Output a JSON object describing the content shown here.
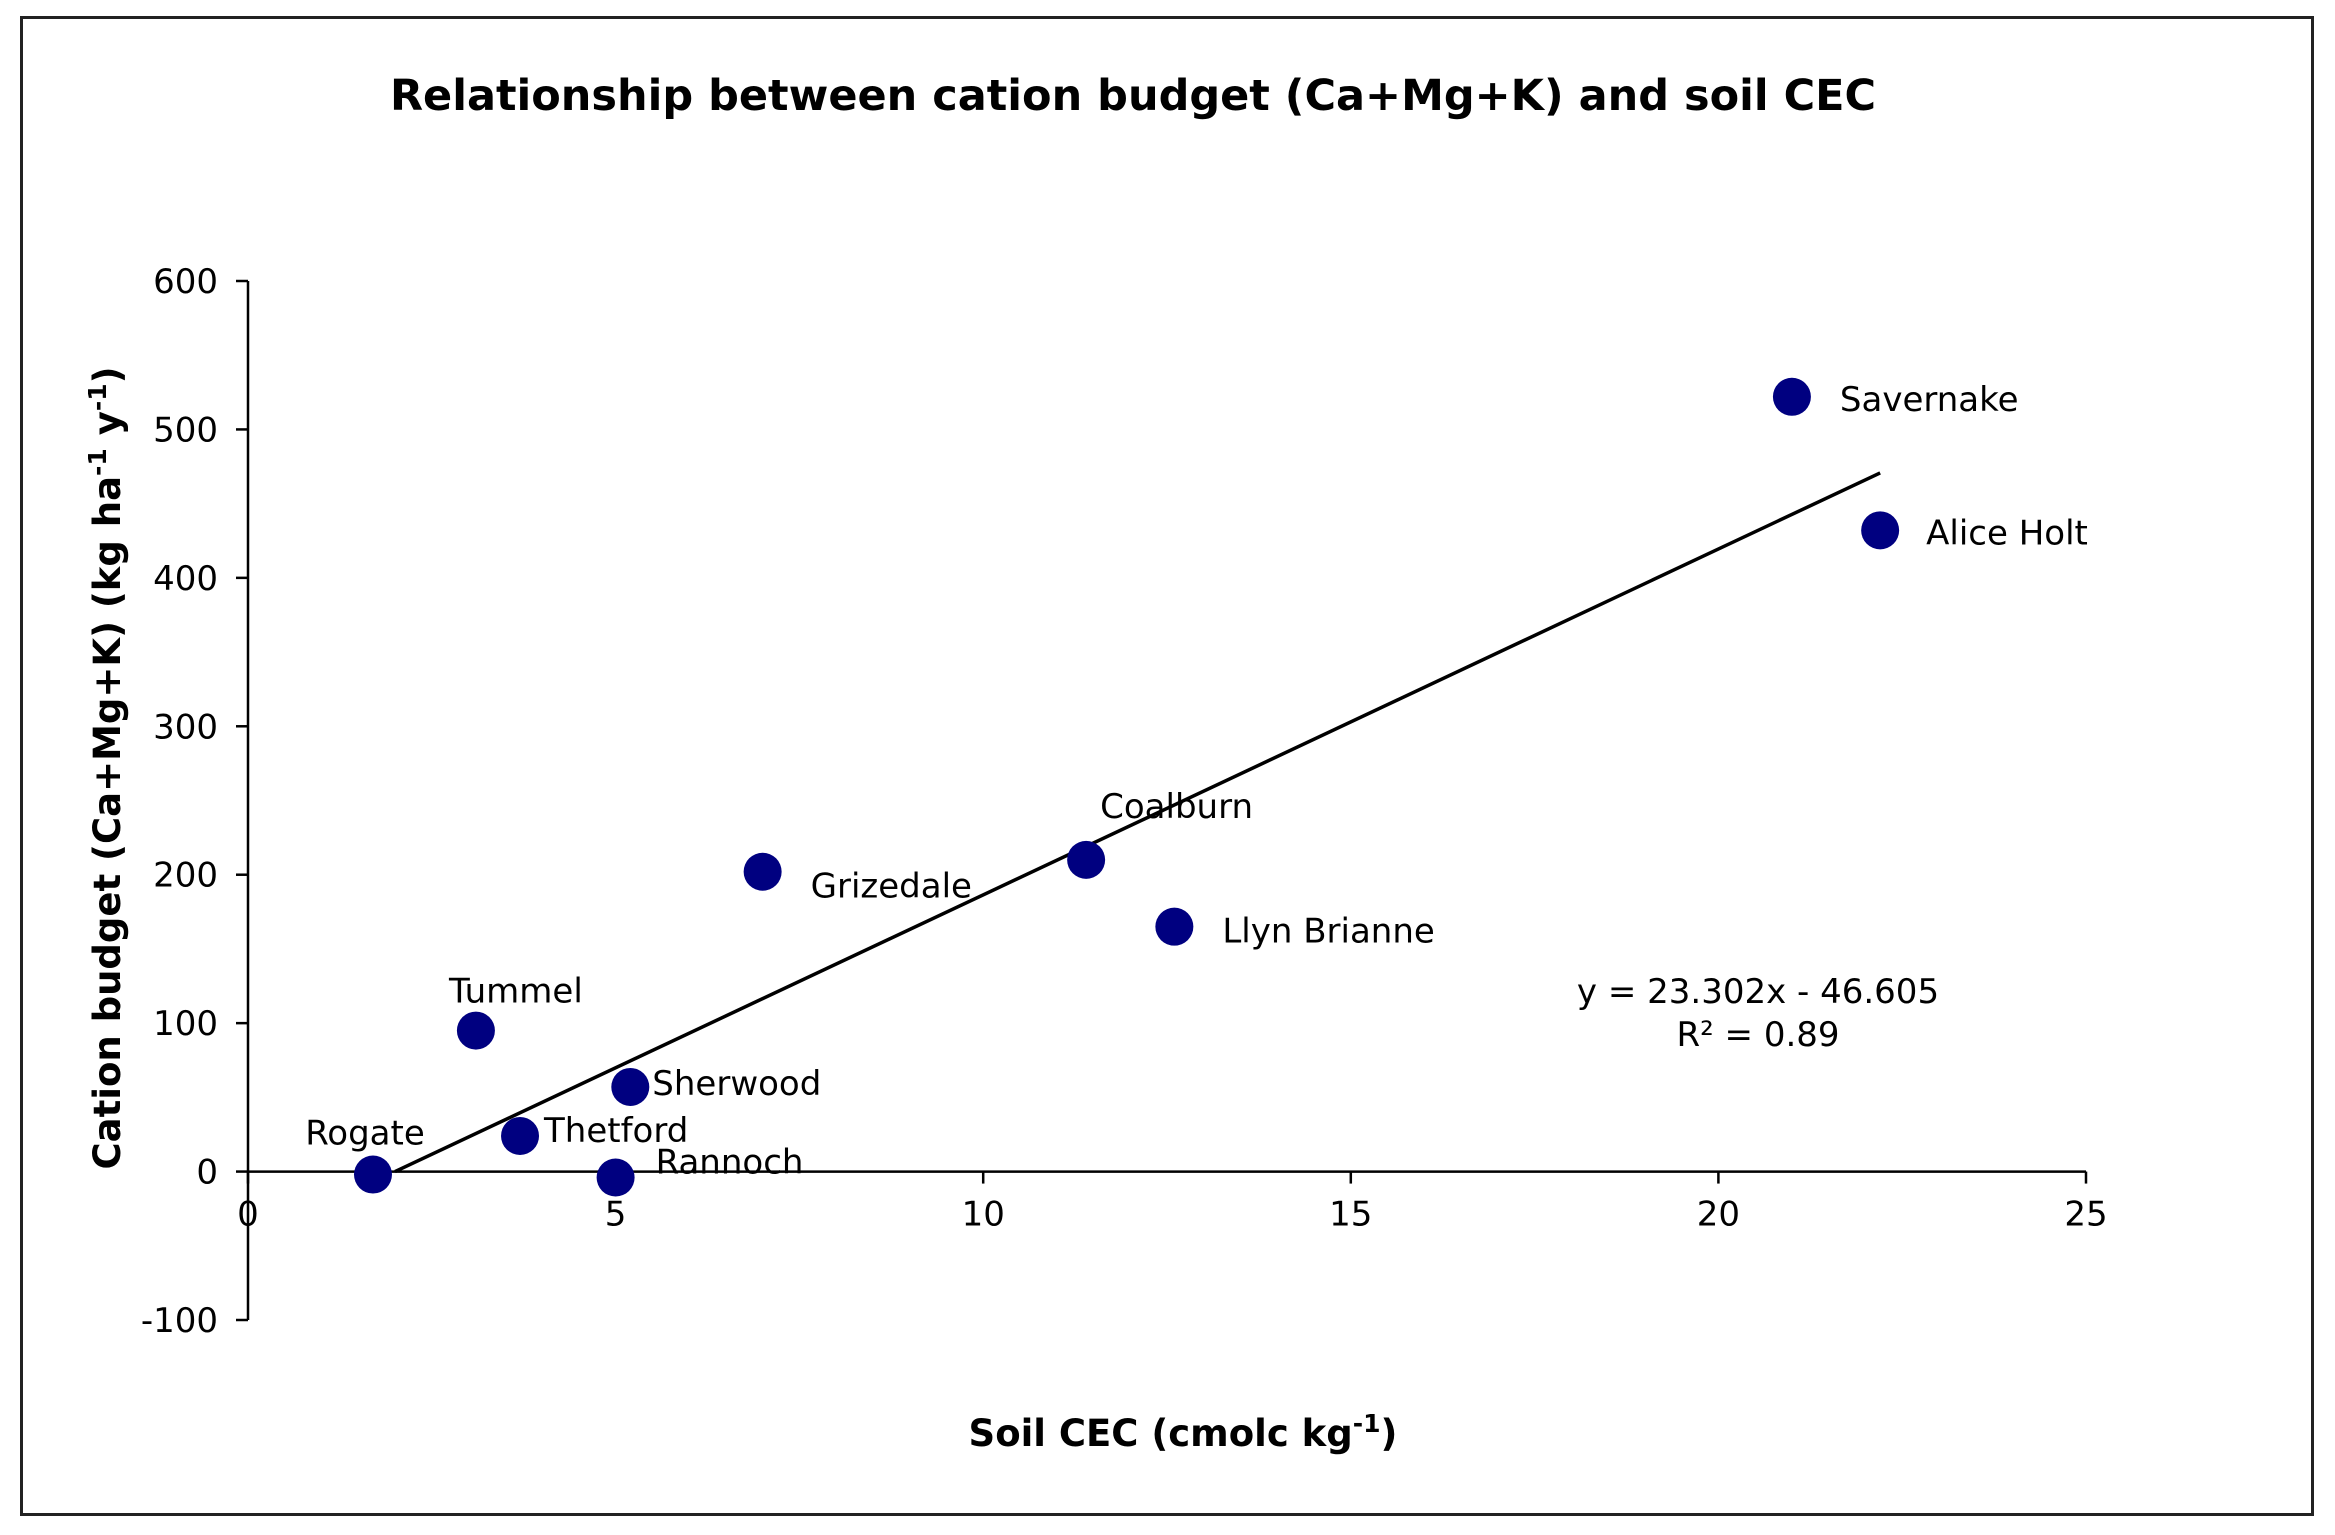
{
  "chart_data": {
    "type": "scatter",
    "title": "Relationship between cation budget (Ca+Mg+K) and soil CEC",
    "xlabel": "Soil CEC (cmolc kg",
    "xlabel_sup": "-1",
    "xlabel_end": ")",
    "ylabel": "Cation budget (Ca+Mg+K) (kg ha",
    "ylabel_sup1": "-1",
    "ylabel_mid": " y",
    "ylabel_sup2": "-1",
    "ylabel_end": ")",
    "xlim": [
      0,
      25
    ],
    "ylim": [
      -100,
      600
    ],
    "xticks": [
      0,
      5,
      10,
      15,
      20,
      25
    ],
    "yticks": [
      -100,
      0,
      100,
      200,
      300,
      400,
      500,
      600
    ],
    "grid": false,
    "legend": "none",
    "marker_color": "#000080",
    "points": [
      {
        "name": "Savernake",
        "x": 21.0,
        "y": 522
      },
      {
        "name": "Alice  Holt",
        "x": 22.2,
        "y": 432
      },
      {
        "name": "Coalburn",
        "x": 11.4,
        "y": 210
      },
      {
        "name": "Grizedale",
        "x": 7.0,
        "y": 202
      },
      {
        "name": "Llyn  Brianne",
        "x": 12.6,
        "y": 165
      },
      {
        "name": "Tummel",
        "x": 3.1,
        "y": 95
      },
      {
        "name": "Sherwood",
        "x": 5.2,
        "y": 57
      },
      {
        "name": "Thetford",
        "x": 3.7,
        "y": 24
      },
      {
        "name": "Rogate",
        "x": 1.7,
        "y": -2
      },
      {
        "name": "Rannoch",
        "x": 5.0,
        "y": -4
      }
    ],
    "trendline": {
      "slope": 23.302,
      "intercept": -46.605,
      "x_range": [
        2.0,
        22.2
      ],
      "equation": "y = 23.302x - 46.605",
      "r2": "R² = 0.89"
    }
  }
}
